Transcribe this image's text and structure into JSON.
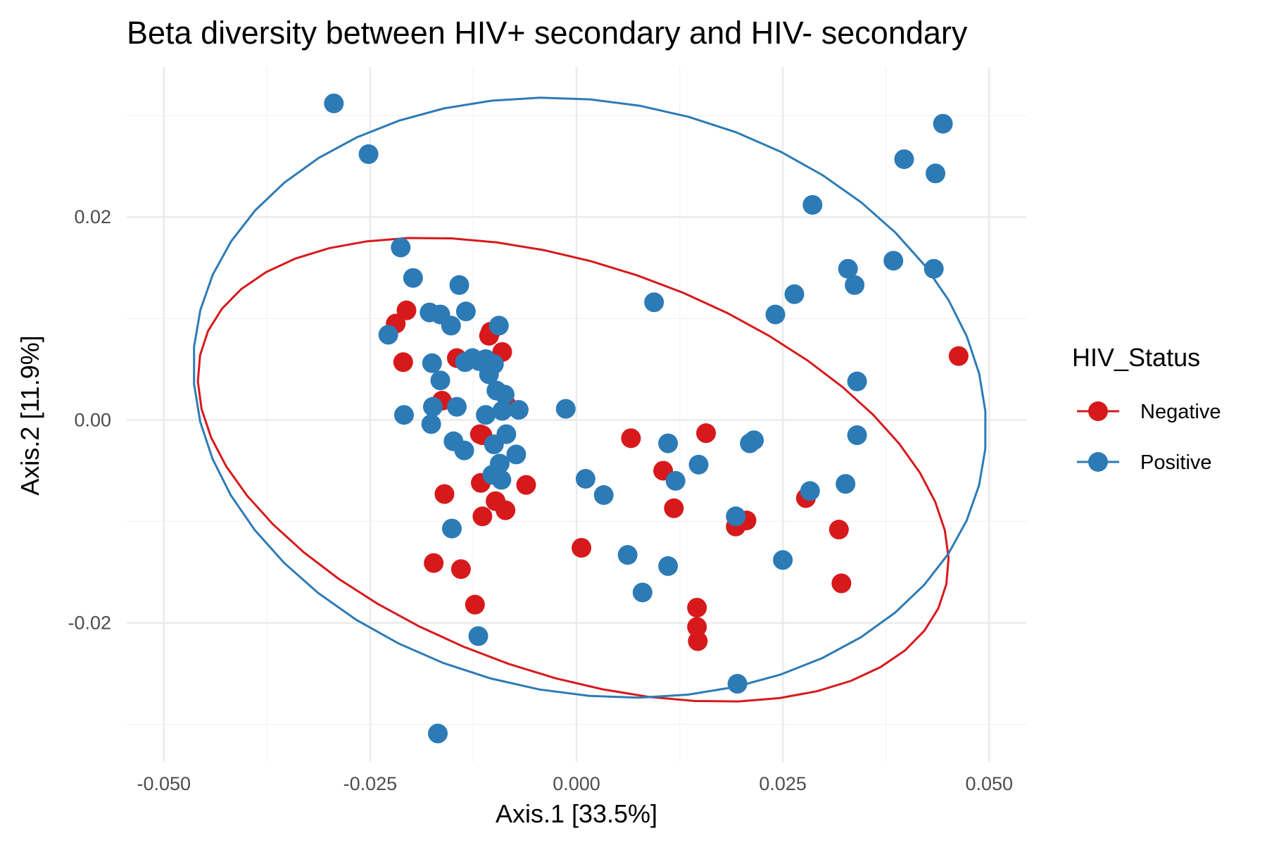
{
  "chart_data": {
    "type": "scatter",
    "title": "Beta diversity between HIV+ secondary and HIV- secondary",
    "xlabel": "Axis.1   [33.5%]",
    "ylabel": "Axis.2   [11.9%]",
    "xlim": [
      -0.0545,
      0.0545
    ],
    "ylim": [
      -0.0337,
      0.0348
    ],
    "x_ticks": [
      -0.05,
      -0.025,
      0.0,
      0.025,
      0.05
    ],
    "x_tick_labels": [
      "-0.050",
      "-0.025",
      "0.000",
      "0.025",
      "0.050"
    ],
    "y_ticks": [
      -0.02,
      0.0,
      0.02
    ],
    "y_tick_labels": [
      "-0.02",
      "0.00",
      "0.02"
    ],
    "grid": true,
    "legend": {
      "title": "HIV_Status",
      "placement": "right"
    },
    "series": [
      {
        "name": "Negative",
        "color": "#D7191C",
        "points": [
          [
            -0.0219,
            0.0095
          ],
          [
            -0.0206,
            0.0108
          ],
          [
            -0.021,
            0.0057
          ],
          [
            -0.0145,
            0.0061
          ],
          [
            -0.0106,
            0.0083
          ],
          [
            -0.0104,
            0.0087
          ],
          [
            -0.009,
            0.0067
          ],
          [
            -0.0084,
            0.0014
          ],
          [
            -0.0163,
            0.0019
          ],
          [
            -0.0117,
            -0.0014
          ],
          [
            -0.0114,
            -0.0015
          ],
          [
            -0.016,
            -0.0073
          ],
          [
            -0.0116,
            -0.0062
          ],
          [
            -0.0098,
            -0.008
          ],
          [
            -0.0086,
            -0.0089
          ],
          [
            -0.0114,
            -0.0095
          ],
          [
            -0.0061,
            -0.0064
          ],
          [
            -0.0173,
            -0.0141
          ],
          [
            -0.014,
            -0.0147
          ],
          [
            -0.0123,
            -0.0182
          ],
          [
            0.0006,
            -0.0126
          ],
          [
            0.0066,
            -0.0018
          ],
          [
            0.0105,
            -0.005
          ],
          [
            0.0118,
            -0.0087
          ],
          [
            0.0157,
            -0.0013
          ],
          [
            0.0146,
            -0.0185
          ],
          [
            0.0146,
            -0.0204
          ],
          [
            0.0147,
            -0.0218
          ],
          [
            0.0193,
            -0.0105
          ],
          [
            0.0206,
            -0.0099
          ],
          [
            0.0278,
            -0.0077
          ],
          [
            0.0318,
            -0.0108
          ],
          [
            0.0321,
            -0.0161
          ],
          [
            0.0463,
            0.0063
          ]
        ]
      },
      {
        "name": "Positive",
        "color": "#2C7BB6",
        "points": [
          [
            -0.0294,
            0.0312
          ],
          [
            -0.0252,
            0.0262
          ],
          [
            -0.0213,
            0.017
          ],
          [
            -0.0198,
            0.014
          ],
          [
            -0.0142,
            0.0133
          ],
          [
            -0.0178,
            0.0106
          ],
          [
            -0.0165,
            0.0104
          ],
          [
            -0.0134,
            0.0107
          ],
          [
            -0.0152,
            0.0093
          ],
          [
            -0.0228,
            0.0084
          ],
          [
            -0.0094,
            0.0093
          ],
          [
            -0.0175,
            0.0056
          ],
          [
            -0.0135,
            0.0057
          ],
          [
            -0.0126,
            0.0061
          ],
          [
            -0.0118,
            0.0058
          ],
          [
            -0.011,
            0.006
          ],
          [
            -0.01,
            0.0055
          ],
          [
            -0.0106,
            0.0045
          ],
          [
            -0.0165,
            0.0039
          ],
          [
            -0.0097,
            0.0029
          ],
          [
            -0.0087,
            0.0025
          ],
          [
            -0.0174,
            0.0013
          ],
          [
            -0.0145,
            0.0013
          ],
          [
            -0.011,
            0.0005
          ],
          [
            -0.009,
            0.0009
          ],
          [
            -0.007,
            0.001
          ],
          [
            -0.0209,
            0.0005
          ],
          [
            -0.0176,
            -0.0004
          ],
          [
            -0.0085,
            -0.0014
          ],
          [
            -0.0149,
            -0.0021
          ],
          [
            -0.0136,
            -0.003
          ],
          [
            -0.01,
            -0.0024
          ],
          [
            -0.0073,
            -0.0034
          ],
          [
            -0.0093,
            -0.0043
          ],
          [
            -0.0091,
            -0.0059
          ],
          [
            -0.0102,
            -0.0054
          ],
          [
            -0.0151,
            -0.0107
          ],
          [
            -0.0119,
            -0.0213
          ],
          [
            -0.0168,
            -0.0309
          ],
          [
            -0.0013,
            0.0011
          ],
          [
            0.0011,
            -0.0058
          ],
          [
            0.0033,
            -0.0074
          ],
          [
            0.0094,
            0.0116
          ],
          [
            0.0111,
            -0.0023
          ],
          [
            0.012,
            -0.006
          ],
          [
            0.0148,
            -0.0044
          ],
          [
            0.0062,
            -0.0133
          ],
          [
            0.008,
            -0.017
          ],
          [
            0.0111,
            -0.0144
          ],
          [
            0.0193,
            -0.0095
          ],
          [
            0.021,
            -0.0023
          ],
          [
            0.0215,
            -0.002
          ],
          [
            0.0241,
            0.0104
          ],
          [
            0.0264,
            0.0124
          ],
          [
            0.025,
            -0.0138
          ],
          [
            0.0286,
            0.0212
          ],
          [
            0.0283,
            -0.007
          ],
          [
            0.0326,
            -0.0063
          ],
          [
            0.0329,
            0.0149
          ],
          [
            0.0337,
            0.0133
          ],
          [
            0.034,
            0.0038
          ],
          [
            0.034,
            -0.0015
          ],
          [
            0.0384,
            0.0157
          ],
          [
            0.0397,
            0.0257
          ],
          [
            0.0433,
            0.0149
          ],
          [
            0.0435,
            0.0243
          ],
          [
            0.0444,
            0.0292
          ],
          [
            0.0195,
            -0.026
          ]
        ]
      }
    ],
    "ellipses": [
      {
        "name": "Negative",
        "color": "#D7191C",
        "center": [
          -0.0004,
          -0.0049
        ],
        "semi_axes": [
          0.0466,
          0.0205
        ],
        "rotation_deg": -14
      },
      {
        "name": "Positive",
        "color": "#2C7BB6",
        "center": [
          0.0016,
          0.0022
        ],
        "semi_axes": [
          0.0482,
          0.0293
        ],
        "rotation_deg": -6
      }
    ]
  }
}
